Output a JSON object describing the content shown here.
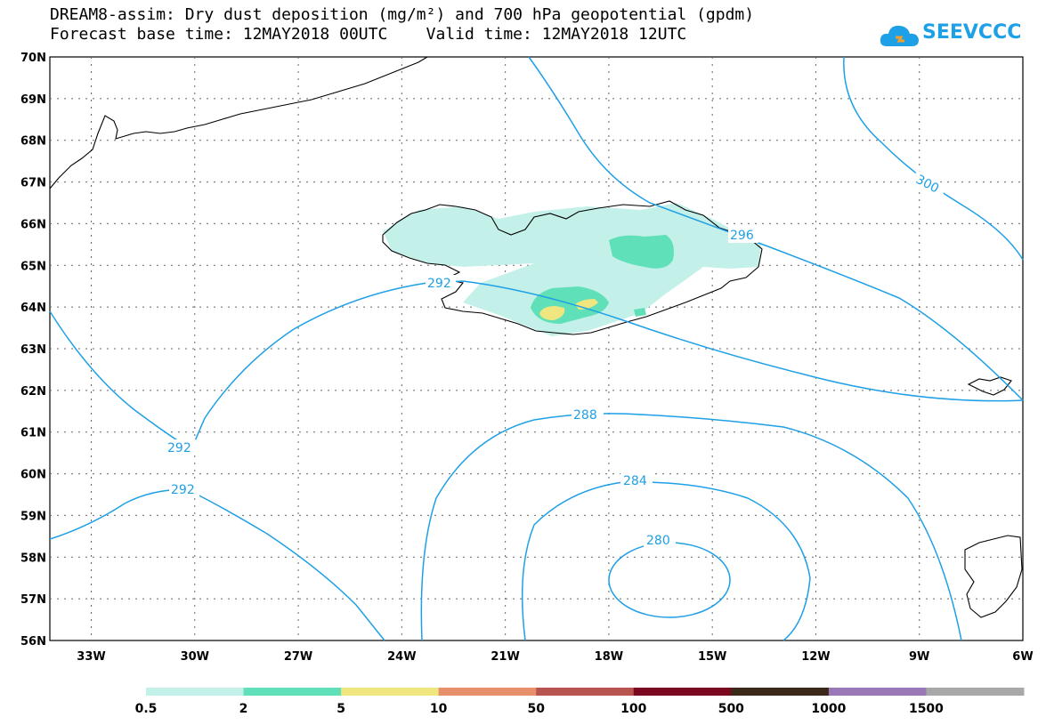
{
  "header": {
    "title_line1": "DREAM8-assim: Dry dust deposition (mg/m²) and 700 hPa geopotential (gpdm)",
    "title_line2": "Forecast base time: 12MAY2018 00UTC    Valid time: 12MAY2018 12UTC"
  },
  "logo": {
    "text": "SEEVCCC",
    "icon": "cloud-icon",
    "color": "#1ea0e6"
  },
  "map": {
    "lat_labels": [
      "70N",
      "69N",
      "68N",
      "67N",
      "66N",
      "65N",
      "64N",
      "63N",
      "62N",
      "61N",
      "60N",
      "59N",
      "58N",
      "57N",
      "56N"
    ],
    "lon_labels": [
      "33W",
      "30W",
      "27W",
      "24W",
      "21W",
      "18W",
      "15W",
      "12W",
      "9W",
      "6W"
    ],
    "contour_color": "#1ea0e6",
    "contour_labels": [
      "292",
      "292",
      "292",
      "296",
      "300",
      "288",
      "284",
      "280"
    ]
  },
  "legend": {
    "colors": [
      "#c4f0ea",
      "#5fe0b8",
      "#f0e680",
      "#e8906c",
      "#b85450",
      "#7a0820",
      "#3a2818",
      "#9a78b8",
      "#a8a8a8"
    ],
    "labels": [
      "0.5",
      "2",
      "5",
      "10",
      "50",
      "100",
      "500",
      "1000",
      "1500"
    ]
  }
}
